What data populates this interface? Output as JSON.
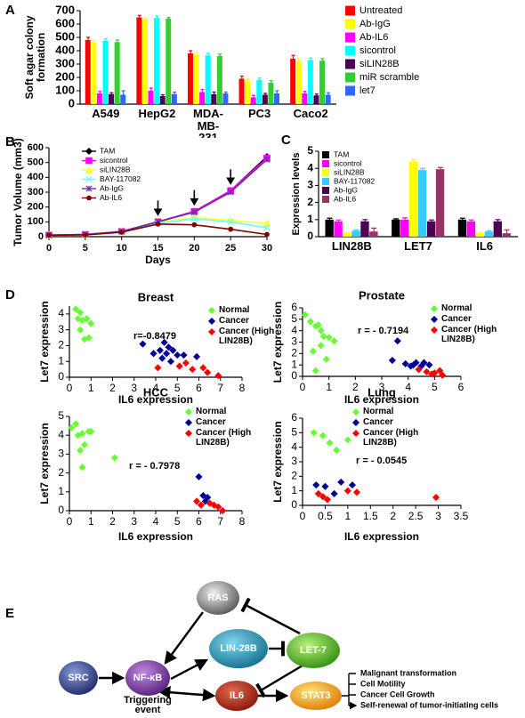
{
  "panel_labels": [
    "A",
    "B",
    "C",
    "D",
    "E"
  ],
  "chart_data": [
    {
      "type": "bar",
      "ylabel": "Soft agar colony formation",
      "categories": [
        "A549",
        "HepG2",
        "MDA-MB-231",
        "PC3",
        "Caco2"
      ],
      "ylim": [
        0,
        700
      ],
      "yticks": [
        0,
        100,
        200,
        300,
        400,
        500,
        600,
        700
      ],
      "series": [
        {
          "name": "Untreated",
          "color": "#ff0000",
          "values": [
            480,
            650,
            380,
            190,
            340
          ],
          "errors": [
            20,
            15,
            20,
            20,
            25
          ]
        },
        {
          "name": "Ab-IgG",
          "color": "#ffff00",
          "values": [
            460,
            640,
            370,
            175,
            320
          ],
          "errors": [
            15,
            10,
            15,
            15,
            15
          ]
        },
        {
          "name": "Ab-IL6",
          "color": "#ff00ff",
          "values": [
            80,
            100,
            90,
            50,
            80
          ],
          "errors": [
            15,
            20,
            20,
            15,
            15
          ]
        },
        {
          "name": "sicontrol",
          "color": "#00ffff",
          "values": [
            475,
            645,
            365,
            180,
            330
          ],
          "errors": [
            15,
            15,
            15,
            15,
            15
          ]
        },
        {
          "name": "siLIN28B",
          "color": "#4b0055",
          "values": [
            75,
            60,
            75,
            70,
            65
          ],
          "errors": [
            10,
            10,
            15,
            10,
            10
          ]
        },
        {
          "name": "miR scramble",
          "color": "#33cc33",
          "values": [
            465,
            640,
            360,
            160,
            325
          ],
          "errors": [
            15,
            10,
            15,
            15,
            15
          ]
        },
        {
          "name": "let7",
          "color": "#3366ff",
          "values": [
            70,
            75,
            80,
            80,
            70
          ],
          "errors": [
            30,
            15,
            10,
            20,
            15
          ]
        }
      ]
    },
    {
      "type": "line",
      "xlabel": "Days",
      "ylabel": "Tumor Volume (mm3)",
      "x": [
        0,
        5,
        10,
        15,
        20,
        25,
        30
      ],
      "xlim": [
        0,
        30
      ],
      "xticks": [
        0,
        5,
        10,
        15,
        20,
        25,
        30
      ],
      "ylim": [
        0,
        600
      ],
      "yticks": [
        0,
        100,
        200,
        300,
        400,
        500,
        600
      ],
      "arrows_x": [
        15,
        20,
        25
      ],
      "series": [
        {
          "name": "TAM",
          "color": "#000000",
          "marker": "diamond",
          "values": [
            10,
            15,
            35,
            100,
            170,
            310,
            540
          ]
        },
        {
          "name": "sicontrol",
          "color": "#ff00ff",
          "marker": "square",
          "values": [
            10,
            15,
            35,
            100,
            170,
            310,
            530
          ]
        },
        {
          "name": "siLIN28B",
          "color": "#ffff33",
          "marker": "triangle",
          "values": [
            10,
            15,
            35,
            95,
            130,
            110,
            90
          ]
        },
        {
          "name": "BAY-117082",
          "color": "#66ffff",
          "marker": "x",
          "values": [
            10,
            15,
            35,
            90,
            120,
            100,
            60
          ]
        },
        {
          "name": "Ab-IgG",
          "color": "#7030a0",
          "marker": "star",
          "values": [
            10,
            15,
            35,
            100,
            165,
            300,
            520
          ]
        },
        {
          "name": "Ab-IL6",
          "color": "#800000",
          "marker": "circle",
          "values": [
            10,
            12,
            30,
            85,
            80,
            50,
            15
          ]
        }
      ]
    },
    {
      "type": "bar",
      "ylabel": "Expression levels",
      "categories": [
        "LIN28B",
        "LET7",
        "IL6"
      ],
      "ylim": [
        0,
        5
      ],
      "yticks": [
        0,
        1,
        2,
        3,
        4,
        5
      ],
      "series": [
        {
          "name": "TAM",
          "color": "#000000",
          "values": [
            1,
            1,
            1
          ],
          "errors": [
            0.08,
            0.05,
            0.08
          ]
        },
        {
          "name": "sicontrol",
          "color": "#ff00ff",
          "values": [
            0.9,
            1,
            0.9
          ],
          "errors": [
            0.08,
            0.1,
            0.08
          ]
        },
        {
          "name": "siLIN28B",
          "color": "#ffff00",
          "values": [
            0.2,
            4.4,
            0.2
          ],
          "errors": [
            0.05,
            0.1,
            0.05
          ]
        },
        {
          "name": "BAY-117082",
          "color": "#33ccff",
          "values": [
            0.35,
            3.9,
            0.3
          ],
          "errors": [
            0.05,
            0.1,
            0.05
          ]
        },
        {
          "name": "Ab-IgG",
          "color": "#4b0055",
          "values": [
            0.9,
            0.9,
            0.9
          ],
          "errors": [
            0.1,
            0.08,
            0.1
          ]
        },
        {
          "name": "Ab-IL6",
          "color": "#993366",
          "values": [
            0.3,
            3.95,
            0.2
          ],
          "errors": [
            0.2,
            0.1,
            0.2
          ]
        }
      ]
    },
    {
      "type": "scatter",
      "title": "Breast",
      "xlabel": "IL6 expression",
      "ylabel": "Let7 expression",
      "annotation": "r=-0.8479",
      "xlim": [
        0,
        8
      ],
      "xticks": [
        0,
        1,
        2,
        3,
        4,
        5,
        6,
        7,
        8
      ],
      "ylim": [
        0,
        4.5
      ],
      "yticks": [
        0,
        1,
        2,
        3,
        4
      ],
      "series": [
        {
          "name": "Normal",
          "color": "#66ff33",
          "x": [
            0.3,
            0.5,
            0.4,
            0.6,
            0.8,
            1,
            0.5,
            0.7,
            0.9
          ],
          "y": [
            4.3,
            4.1,
            3.7,
            3.6,
            3.7,
            3.4,
            3,
            2.4,
            2.5
          ]
        },
        {
          "name": "Cancer",
          "color": "#000099",
          "x": [
            3.4,
            3.9,
            4.2,
            4.4,
            4.5,
            4.6,
            4.8,
            5,
            5.3,
            5.9,
            4.3,
            4.7
          ],
          "y": [
            2.1,
            1.5,
            1.7,
            2.2,
            1.5,
            1.9,
            1.7,
            1.4,
            1.4,
            1.3,
            1.2,
            1
          ]
        },
        {
          "name": "Cancer (High LIN28B)",
          "color": "#ff0000",
          "x": [
            4.1,
            5.1,
            5.7,
            6.2,
            6.4,
            6.9,
            5.4
          ],
          "y": [
            0.6,
            0.7,
            0.5,
            0.6,
            0.3,
            0.1,
            0.9
          ]
        }
      ]
    },
    {
      "type": "scatter",
      "title": "Prostate",
      "xlabel": "IL6 expression",
      "ylabel": "Let7 expression",
      "annotation": "r = - 0.7194",
      "xlim": [
        0,
        6
      ],
      "xticks": [
        0,
        1,
        2,
        3,
        4,
        5,
        6
      ],
      "ylim": [
        0,
        6
      ],
      "yticks": [
        0,
        1,
        2,
        3,
        4,
        5,
        6
      ],
      "series": [
        {
          "name": "Normal",
          "color": "#66ff33",
          "x": [
            0.1,
            0.3,
            0.5,
            0.6,
            0.7,
            0.8,
            1,
            1.2,
            0.7,
            0.4,
            0.9,
            0.5
          ],
          "y": [
            5.4,
            4.8,
            4.4,
            4.5,
            4,
            3.5,
            3.4,
            3.1,
            2.7,
            2.2,
            1.5,
            0.5
          ]
        },
        {
          "name": "Cancer",
          "color": "#000099",
          "x": [
            3.4,
            3.6,
            3.9,
            4.1,
            4.2,
            4.3,
            4.5,
            4.6,
            4.8
          ],
          "y": [
            1.4,
            3.1,
            1.1,
            0.9,
            1,
            1.2,
            0.9,
            1.2,
            1
          ]
        },
        {
          "name": "Cancer (High LIN28B)",
          "color": "#ff0000",
          "x": [
            4.4,
            4.7,
            5,
            5.2,
            4.9,
            5.3
          ],
          "y": [
            0.6,
            0.4,
            0.3,
            0.5,
            0.2,
            0.1
          ]
        }
      ]
    },
    {
      "type": "scatter",
      "title": "HCC",
      "xlabel": "IL6 expression",
      "ylabel": "Let7 expression",
      "annotation": "r = - 0.7978",
      "xlim": [
        0,
        8
      ],
      "xticks": [
        0,
        1,
        2,
        3,
        4,
        5,
        6,
        7,
        8
      ],
      "ylim": [
        0,
        5
      ],
      "yticks": [
        0,
        1,
        2,
        3,
        4,
        5
      ],
      "series": [
        {
          "name": "Normal",
          "color": "#66ff33",
          "x": [
            0.1,
            0.3,
            0.4,
            0.6,
            0.7,
            0.9,
            1,
            0.5,
            0.6,
            2.1
          ],
          "y": [
            4.4,
            4.6,
            4,
            4.1,
            3.5,
            4.2,
            4.2,
            3.2,
            2.3,
            2.8
          ]
        },
        {
          "name": "Cancer",
          "color": "#000099",
          "x": [
            6,
            6.2,
            6.3,
            6.4
          ],
          "y": [
            1.8,
            0.8,
            0.5,
            0.7
          ]
        },
        {
          "name": "Cancer (High LIN28B)",
          "color": "#ff0000",
          "x": [
            5.9,
            6.1,
            6.5,
            6.7,
            6.9,
            7.1
          ],
          "y": [
            0.5,
            0.3,
            0.4,
            0.3,
            0.2,
            0
          ]
        }
      ]
    },
    {
      "type": "scatter",
      "title": "Lung",
      "xlabel": "IL6 expression",
      "ylabel": "Let7 expression",
      "annotation": "r = - 0.0545",
      "xlim": [
        0,
        3.5
      ],
      "xticks": [
        0,
        0.5,
        1,
        1.5,
        2,
        2.5,
        3,
        3.5
      ],
      "ylim": [
        0,
        6
      ],
      "yticks": [
        0,
        1,
        2,
        3,
        4,
        5,
        6
      ],
      "series": [
        {
          "name": "Normal",
          "color": "#66ff33",
          "x": [
            0.25,
            0.45,
            0.6,
            0.75,
            1
          ],
          "y": [
            5,
            4.8,
            4.3,
            3.8,
            4.5
          ]
        },
        {
          "name": "Cancer",
          "color": "#000099",
          "x": [
            0.3,
            0.5,
            0.85,
            1.1,
            0.7
          ],
          "y": [
            1.4,
            1.3,
            1.6,
            1.4,
            0.8
          ]
        },
        {
          "name": "Cancer (High LIN28B)",
          "color": "#ff0000",
          "x": [
            0.35,
            0.45,
            0.55,
            1,
            1.2,
            2.95
          ],
          "y": [
            0.8,
            0.6,
            0.4,
            1,
            0.9,
            0.55
          ]
        }
      ]
    }
  ],
  "diagram": {
    "nodes": [
      "RAS",
      "LIN-28B",
      "LET-7",
      "SRC",
      "NF-κB",
      "IL6",
      "STAT3"
    ],
    "caption": "Triggering event",
    "outcomes": [
      "Malignant transformation",
      "Cell Motility",
      "Cancer Cell Growth",
      "Self-renewal of tumor-initiating cells"
    ]
  }
}
